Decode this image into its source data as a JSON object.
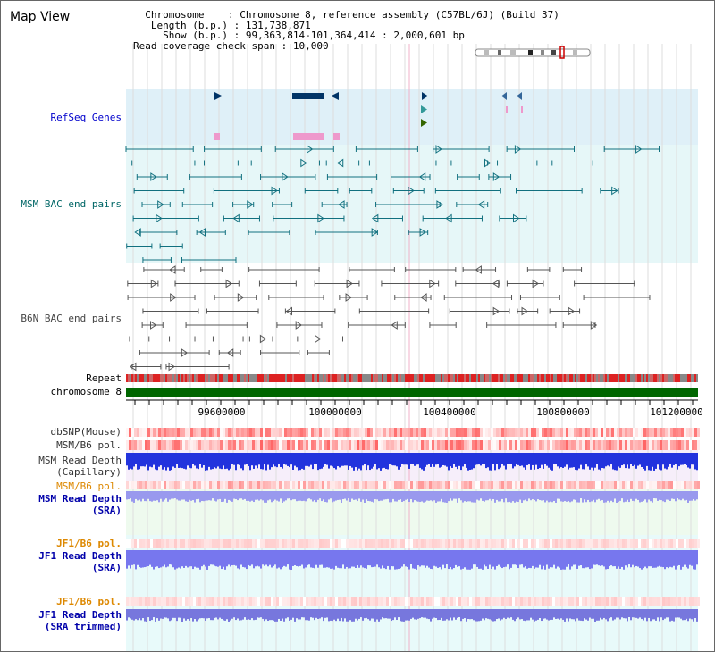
{
  "title": "Map View",
  "info": {
    "chromosome_key": "Chromosome",
    "chromosome_value": "Chromosome 8, reference assembly (C57BL/6J) (Build 37)",
    "length_key": "Length (b.p.)",
    "length_value": "131,738,871",
    "show_key": "Show (b.p.)",
    "show_value": "99,363,814-101,364,414 : 2,000,601 bp",
    "span_key": "Read coverage check span",
    "span_value": "10,000"
  },
  "tracks": {
    "refseq": {
      "label": "RefSeq Genes",
      "color": "#0000cc"
    },
    "msm_bac": {
      "label": "MSM BAC end pairs",
      "color": "#006666"
    },
    "b6n_bac": {
      "label": "B6N BAC end pairs",
      "color": "#444444"
    },
    "repeat": {
      "label": "Repeat"
    },
    "chromosome": {
      "label": "chromosome 8"
    },
    "dbsnp": {
      "label": "dbSNP(Mouse)"
    },
    "msm_b6_pol": {
      "label": "MSM/B6 pol."
    },
    "msm_depth_cap": {
      "label": "MSM Read Depth",
      "sublabel": "(Capillary)"
    },
    "msm_b6_pol2": {
      "label": "MSM/B6 pol.",
      "color": "#dd8800"
    },
    "msm_depth_sra": {
      "label": "MSM Read Depth",
      "sublabel": "(SRA)",
      "color": "#0000aa"
    },
    "jf1_b6_pol": {
      "label": "JF1/B6 pol.",
      "color": "#dd8800"
    },
    "jf1_depth_sra": {
      "label": "JF1 Read Depth",
      "sublabel": "(SRA)",
      "color": "#0000aa"
    },
    "jf1_b6_pol2": {
      "label": "JF1/B6 pol.",
      "color": "#dd8800"
    },
    "jf1_depth_trim": {
      "label": "JF1 Read Depth",
      "sublabel": "(SRA trimmed)",
      "color": "#0000aa"
    }
  },
  "axis": {
    "ticks": [
      "99600000",
      "100000000",
      "100400000",
      "100800000",
      "101200000"
    ]
  },
  "colors": {
    "refseq_bg": "#dff0f8",
    "msm_bg": "#e6f7f8",
    "chromosome_bar": "#006600",
    "repeat_red": "#dd2222",
    "depth_blue": "#2233dd",
    "depth_light": "#8888ee",
    "pink": "#ee99cc",
    "gene_dark": "#003366"
  }
}
